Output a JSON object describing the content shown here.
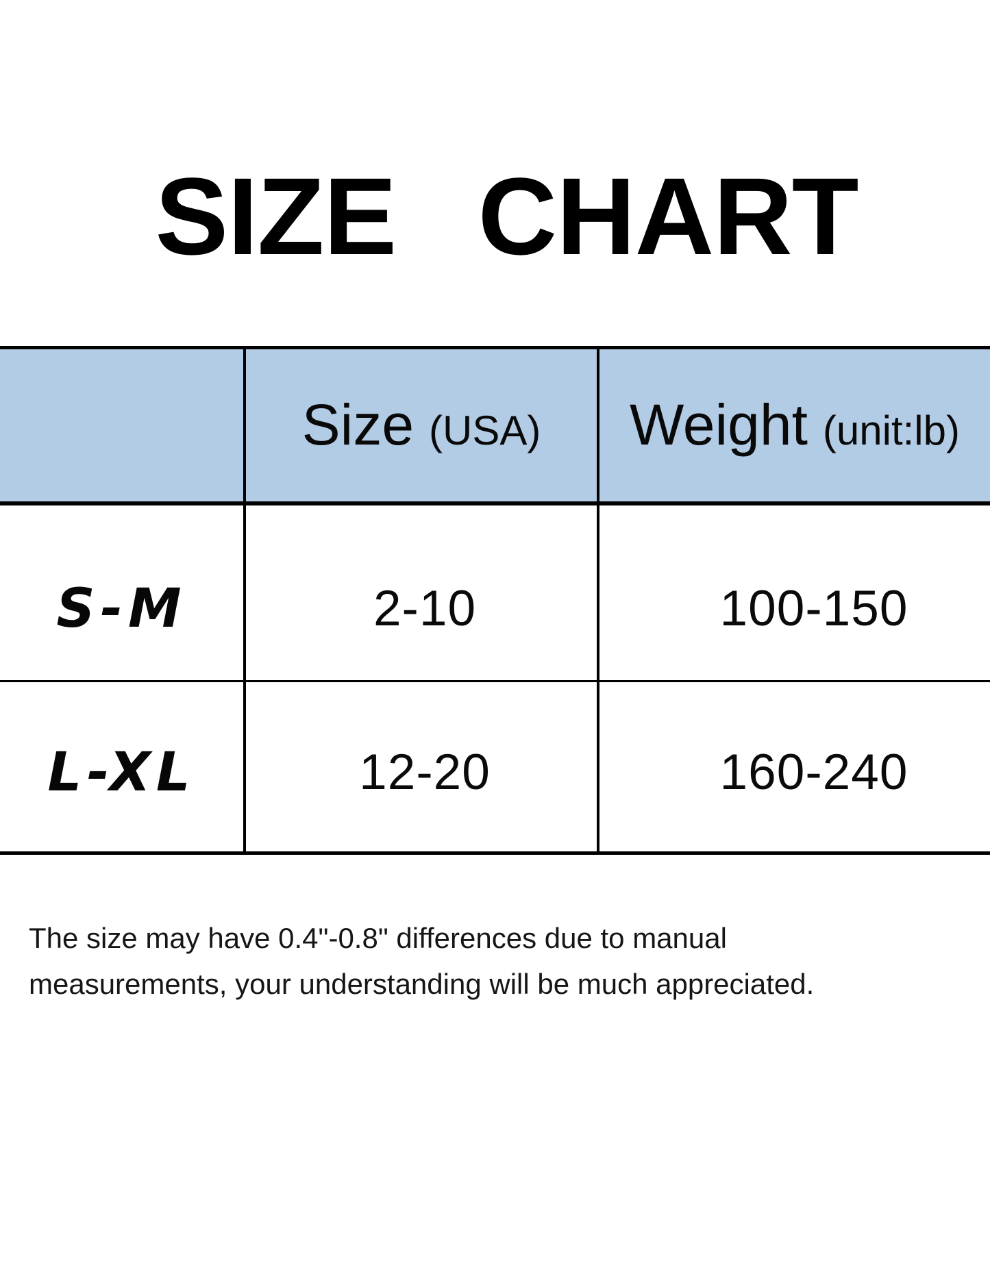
{
  "title": "SIZE CHART",
  "table": {
    "header_bg": "#b3cce5",
    "border_color": "#000000",
    "columns": [
      {
        "label": "",
        "sublabel": ""
      },
      {
        "label": "Size",
        "sublabel": "(USA)"
      },
      {
        "label": "Weight",
        "sublabel": "(unit:lb)"
      }
    ],
    "rows": [
      {
        "size_range": "S-M",
        "usa_size": "2-10",
        "weight": "100-150"
      },
      {
        "size_range": "L-XL",
        "usa_size": "12-20",
        "weight": "160-240"
      }
    ]
  },
  "footnote": {
    "line1": "The size may have 0.4\"-0.8\" differences due to manual",
    "line2": "measurements, your understanding will be much appreciated."
  },
  "chart_data": {
    "type": "table",
    "title": "SIZE CHART",
    "columns": [
      "",
      "Size (USA)",
      "Weight (unit:lb)"
    ],
    "rows": [
      [
        "S-M",
        "2-10",
        "100-150"
      ],
      [
        "L-XL",
        "12-20",
        "160-240"
      ]
    ],
    "note": "The size may have 0.4\"-0.8\" differences due to manual measurements, your understanding will be much appreciated.",
    "layout": {
      "header_background": "#b3cce5",
      "grid": "on",
      "lines": "#000000"
    }
  }
}
